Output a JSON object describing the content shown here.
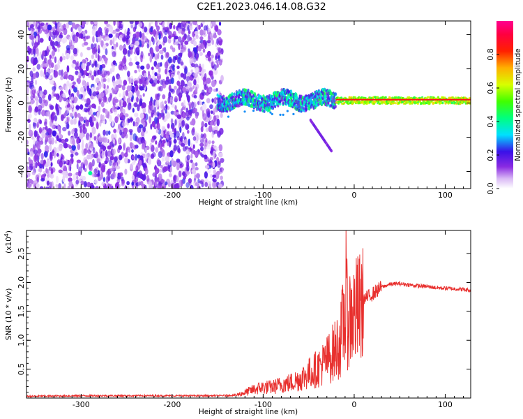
{
  "title": "C2E1.2023.046.14.08.G32",
  "chart_data": [
    {
      "type": "heatmap",
      "xlabel": "Height of straight line (km)",
      "ylabel": "Frequency (Hz)",
      "xlim": [
        -360,
        128
      ],
      "ylim": [
        -50,
        48
      ],
      "xticks": [
        -300,
        -200,
        -100,
        0,
        100
      ],
      "yticks": [
        -40,
        -20,
        0,
        20,
        40
      ],
      "colorbar": {
        "label": "Normalized spectral amplitude",
        "range": [
          0,
          1
        ],
        "ticks": [
          "0.0",
          "0.2",
          "0.4",
          "0.6",
          "0.8"
        ],
        "colormap": "rainbow: white→violet→blue→cyan→green→yellow→red→magenta"
      },
      "features": [
        {
          "name": "broadband scatter",
          "x": [
            -360,
            -145
          ],
          "y": [
            -50,
            48
          ],
          "amplitude": 0.15
        },
        {
          "name": "narrow echo band",
          "x": [
            -150,
            128
          ],
          "y_center": 1.5,
          "amplitude": 0.75
        },
        {
          "name": "descending tail",
          "x": [
            -48,
            -25
          ],
          "y": [
            -10,
            -28
          ],
          "amplitude": 0.12
        }
      ]
    },
    {
      "type": "line",
      "xlabel": "Height of straight line (km)",
      "ylabel": "SNR (10 * v/v)",
      "scale_label": "(x10",
      "scale_exp": "4",
      "scale_close": ")",
      "xlim": [
        -360,
        128
      ],
      "ylim": [
        0,
        2.9
      ],
      "xticks": [
        -300,
        -200,
        -100,
        0,
        100
      ],
      "yticks": [
        "0.5",
        "1.0",
        "1.5",
        "2.0",
        "2.5"
      ],
      "color": "#e8302e",
      "series": [
        {
          "x": [
            -360,
            -300,
            -250,
            -200,
            -150,
            -130,
            -120,
            -110,
            -100,
            -90,
            -80,
            -70,
            -60,
            -50,
            -40,
            -35,
            -30,
            -25,
            -20,
            -15,
            -12,
            -10,
            -8,
            -5,
            0,
            10,
            20,
            30,
            40,
            50,
            60,
            70,
            80,
            90,
            100,
            110,
            120,
            128
          ],
          "y": [
            0.03,
            0.04,
            0.04,
            0.04,
            0.04,
            0.05,
            0.1,
            0.16,
            0.2,
            0.2,
            0.25,
            0.28,
            0.35,
            0.45,
            0.55,
            0.62,
            0.7,
            0.8,
            0.9,
            1.05,
            1.4,
            1.5,
            1.55,
            1.5,
            1.55,
            1.7,
            1.8,
            1.92,
            1.97,
            1.98,
            1.96,
            1.94,
            1.93,
            1.91,
            1.9,
            1.89,
            1.88,
            1.86
          ]
        }
      ],
      "spike": {
        "x": -9,
        "y": 2.9
      }
    }
  ]
}
